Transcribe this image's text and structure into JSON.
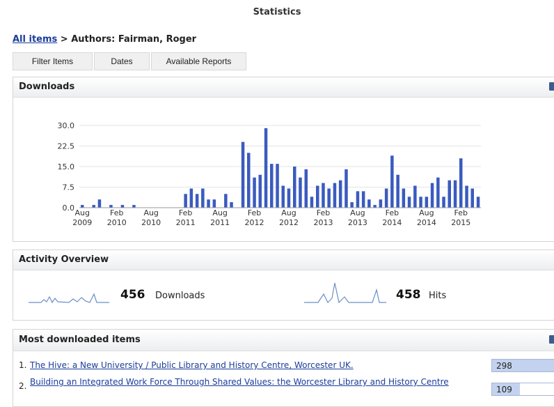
{
  "page": {
    "title": "Statistics"
  },
  "breadcrumb": {
    "link": "All items",
    "separator": " > ",
    "current": "Authors: Fairman, Roger"
  },
  "tabs": [
    {
      "label": "Filter Items"
    },
    {
      "label": "Dates"
    },
    {
      "label": "Available Reports"
    }
  ],
  "downloads_panel": {
    "title": "Downloads"
  },
  "chart_data": {
    "type": "bar",
    "title": "",
    "xlabel": "",
    "ylabel": "",
    "ylim": [
      0,
      30
    ],
    "yticks": [
      "0.0",
      "7.5",
      "15.0",
      "22.5",
      "30.0"
    ],
    "grid": true,
    "color": "#3a5bbf",
    "x_start": "Aug 2009",
    "xtick_labels": [
      {
        "month": "Aug",
        "year": "2009"
      },
      {
        "month": "Feb",
        "year": "2010"
      },
      {
        "month": "Aug",
        "year": "2010"
      },
      {
        "month": "Feb",
        "year": "2011"
      },
      {
        "month": "Aug",
        "year": "2011"
      },
      {
        "month": "Feb",
        "year": "2012"
      },
      {
        "month": "Aug",
        "year": "2012"
      },
      {
        "month": "Feb",
        "year": "2013"
      },
      {
        "month": "Aug",
        "year": "2013"
      },
      {
        "month": "Feb",
        "year": "2014"
      },
      {
        "month": "Aug",
        "year": "2014"
      },
      {
        "month": "Feb",
        "year": "2015"
      }
    ],
    "values": [
      1,
      0,
      1,
      3,
      0,
      1,
      0,
      1,
      0,
      1,
      0,
      0,
      0,
      0,
      0,
      0,
      0,
      0,
      5,
      7,
      5,
      7,
      3,
      3,
      0,
      5,
      2,
      0,
      24,
      20,
      11,
      12,
      29,
      16,
      16,
      8,
      7,
      15,
      11,
      14,
      4,
      8,
      9,
      7,
      9,
      10,
      14,
      2,
      6,
      6,
      3,
      1,
      3,
      7,
      19,
      12,
      7,
      4,
      8,
      4,
      4,
      9,
      11,
      4,
      10,
      10,
      18,
      8,
      7,
      4
    ]
  },
  "activity": {
    "title": "Activity Overview",
    "downloads_count": "456",
    "downloads_label": "Downloads",
    "hits_count": "458",
    "hits_label": "Hits",
    "spark_color": "#6a8fc7"
  },
  "most_downloaded": {
    "title": "Most downloaded items",
    "items": [
      {
        "num": "1.",
        "title": "The Hive: a New University / Public Library and History Centre, Worcester UK.",
        "count": "298",
        "share": 1.0
      },
      {
        "num": "2.",
        "title": "Building an Integrated Work Force Through Shared Values: the Worcester Library and History Centre",
        "count": "109",
        "share": 0.37
      }
    ]
  }
}
